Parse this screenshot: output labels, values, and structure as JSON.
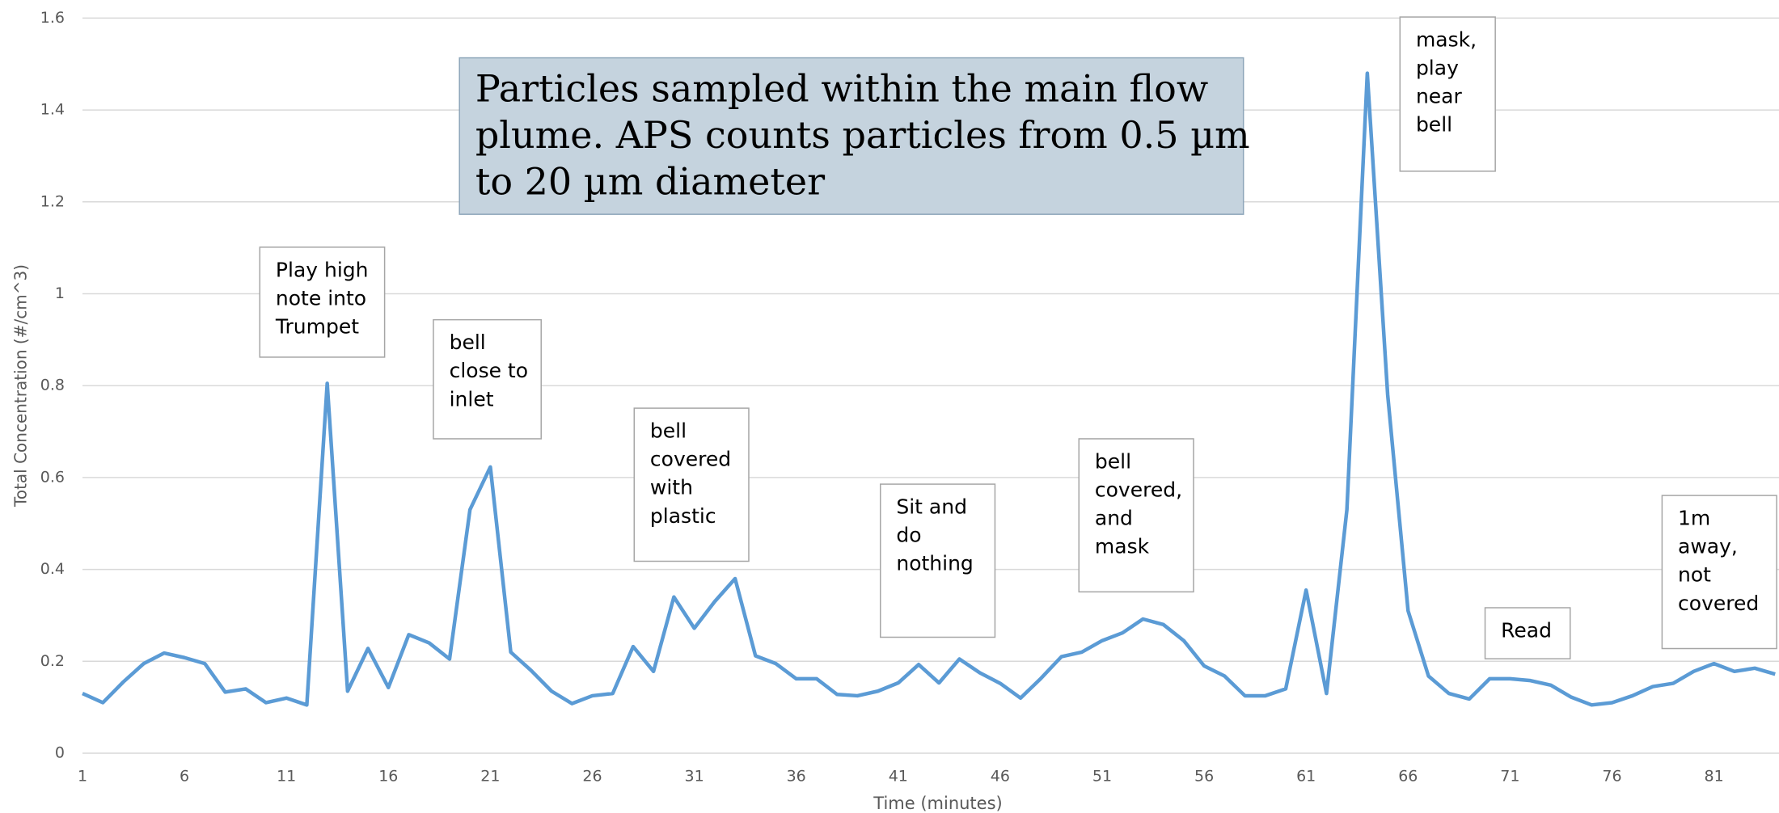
{
  "chart_data": {
    "type": "line",
    "title_lines": [
      "Particles sampled within the main flow",
      "plume. APS counts particles from 0.5 µm",
      "to 20 µm diameter"
    ],
    "x_label": "Time (minutes)",
    "y_label": "Total Concentration (#/cm^3)",
    "x": [
      1,
      2,
      3,
      4,
      5,
      6,
      7,
      8,
      9,
      10,
      11,
      12,
      13,
      14,
      15,
      16,
      17,
      18,
      19,
      20,
      21,
      22,
      23,
      24,
      25,
      26,
      27,
      28,
      29,
      30,
      31,
      32,
      33,
      34,
      35,
      36,
      37,
      38,
      39,
      40,
      41,
      42,
      43,
      44,
      45,
      46,
      47,
      48,
      49,
      50,
      51,
      52,
      53,
      54,
      55,
      56,
      57,
      58,
      59,
      60,
      61,
      62,
      63,
      64,
      65,
      66,
      67,
      68,
      69,
      70,
      71,
      72,
      73,
      74,
      75,
      76,
      77,
      78,
      79,
      80,
      81,
      82,
      83,
      84
    ],
    "series": [
      {
        "color": "#5b9bd5",
        "values": [
          0.13,
          0.11,
          0.155,
          0.195,
          0.218,
          0.208,
          0.195,
          0.133,
          0.14,
          0.11,
          0.12,
          0.105,
          0.805,
          0.135,
          0.228,
          0.143,
          0.258,
          0.24,
          0.205,
          0.53,
          0.623,
          0.22,
          0.18,
          0.135,
          0.108,
          0.125,
          0.13,
          0.232,
          0.178,
          0.34,
          0.272,
          0.33,
          0.38,
          0.212,
          0.195,
          0.162,
          0.162,
          0.128,
          0.125,
          0.135,
          0.153,
          0.193,
          0.153,
          0.205,
          0.175,
          0.152,
          0.12,
          0.163,
          0.21,
          0.22,
          0.245,
          0.262,
          0.292,
          0.28,
          0.245,
          0.19,
          0.168,
          0.125,
          0.125,
          0.14,
          0.355,
          0.13,
          0.53,
          1.48,
          0.78,
          0.31,
          0.168,
          0.13,
          0.118,
          0.162,
          0.162,
          0.158,
          0.148,
          0.122,
          0.105,
          0.11,
          0.125,
          0.145,
          0.152,
          0.178,
          0.195,
          0.178,
          0.185,
          0.172
        ]
      }
    ],
    "xlim": [
      1,
      84
    ],
    "xticks": [
      1,
      6,
      11,
      16,
      21,
      26,
      31,
      36,
      41,
      46,
      51,
      56,
      61,
      66,
      71,
      76,
      81
    ],
    "ylim": [
      0,
      1.6
    ],
    "yticks": [
      0,
      0.2,
      0.4,
      0.6,
      0.8,
      1,
      1.2,
      1.4,
      1.6
    ],
    "grid": true,
    "annotations": [
      {
        "lines": [
          "Play high",
          "note into",
          "Trumpet"
        ]
      },
      {
        "lines": [
          "bell",
          "close to",
          "inlet"
        ]
      },
      {
        "lines": [
          "bell",
          "covered",
          "with",
          "plastic"
        ]
      },
      {
        "lines": [
          "Sit and",
          "do",
          "nothing"
        ]
      },
      {
        "lines": [
          "bell",
          "covered,",
          "and",
          "mask"
        ]
      },
      {
        "lines": [
          "mask,",
          "play",
          "near",
          "bell"
        ]
      },
      {
        "lines": [
          "Read"
        ]
      },
      {
        "lines": [
          "1m",
          "away,",
          "not",
          "covered"
        ]
      }
    ]
  }
}
